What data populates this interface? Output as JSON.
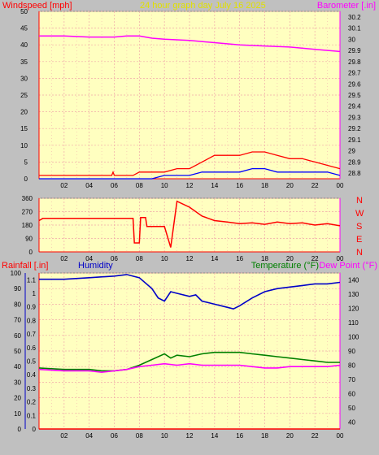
{
  "title": "24 hour graph day   July 16 2025",
  "colors": {
    "background": "#c0c0c0",
    "plot_bg": "#ffffc0",
    "grid": "#f0a8a8",
    "axis": "#ff0000",
    "wind": "#ff0000",
    "gust_blue": "#0000ff",
    "gust_green": "#008000",
    "barometer": "#ff00ff",
    "humidity": "#0000c8",
    "temperature": "#008000",
    "dew_point": "#ff00ff",
    "title_color": "#e0e000"
  },
  "chart_data": [
    {
      "type": "line",
      "name": "wind-barometer",
      "left_axis_label": "Windspeed [mph]",
      "right_axis_label": "Barometer [.in]",
      "x_ticks": [
        "02",
        "04",
        "06",
        "08",
        "10",
        "12",
        "14",
        "16",
        "18",
        "20",
        "22",
        "00"
      ],
      "y_left_ticks": [
        "0",
        "5",
        "10",
        "15",
        "20",
        "25",
        "30",
        "35",
        "40",
        "45",
        "50"
      ],
      "y_left_range": [
        0,
        50
      ],
      "y_right_ticks": [
        "28.8",
        "28.9",
        "29",
        "29.1",
        "29.2",
        "29.3",
        "29.4",
        "29.5",
        "29.6",
        "29.7",
        "29.8",
        "29.9",
        "30",
        "30.1",
        "30.2"
      ],
      "y_right_range": [
        28.75,
        30.25
      ],
      "series": [
        {
          "key": "barometer",
          "axis": "right",
          "x": [
            0,
            2,
            4,
            6,
            7,
            8,
            9,
            10,
            12,
            14,
            16,
            18,
            20,
            22,
            24
          ],
          "values": [
            30.03,
            30.03,
            30.02,
            30.02,
            30.03,
            30.03,
            30.01,
            30.0,
            29.99,
            29.97,
            29.95,
            29.94,
            29.93,
            29.91,
            29.89
          ]
        },
        {
          "key": "wind",
          "axis": "left",
          "x": [
            0,
            5.8,
            5.9,
            6.0,
            7.5,
            8,
            9,
            10,
            11,
            12,
            13,
            14,
            15,
            16,
            17,
            18,
            19,
            20,
            21,
            22,
            23,
            24
          ],
          "values": [
            1,
            1,
            2,
            1,
            1,
            2,
            2,
            2,
            3,
            3,
            5,
            7,
            7,
            7,
            8,
            8,
            7,
            6,
            6,
            5,
            4,
            3
          ]
        },
        {
          "key": "gust_blue",
          "axis": "left",
          "x": [
            0,
            9,
            10,
            11,
            12,
            13,
            14,
            15,
            16,
            17,
            18,
            19,
            20,
            21,
            22,
            23,
            24
          ],
          "values": [
            0,
            0,
            1,
            1,
            1,
            2,
            2,
            2,
            2,
            3,
            3,
            2,
            2,
            2,
            2,
            2,
            1
          ]
        }
      ]
    },
    {
      "type": "line",
      "name": "wind-direction",
      "right_labels": [
        "N",
        "W",
        "S",
        "E",
        "N"
      ],
      "x_ticks": [
        "02",
        "04",
        "06",
        "08",
        "10",
        "12",
        "14",
        "16",
        "18",
        "20",
        "22",
        "00"
      ],
      "y_ticks": [
        "0",
        "90",
        "180",
        "270",
        "360"
      ],
      "y_range": [
        0,
        360
      ],
      "series": [
        {
          "key": "direction",
          "x": [
            0,
            0.3,
            7.5,
            7.6,
            8.0,
            8.1,
            8.5,
            8.6,
            10.0,
            10.5,
            11,
            12,
            13,
            14,
            15,
            16,
            17,
            18,
            19,
            20,
            21,
            22,
            23,
            24
          ],
          "values": [
            210,
            225,
            225,
            60,
            60,
            230,
            230,
            170,
            170,
            30,
            340,
            300,
            240,
            210,
            200,
            190,
            195,
            185,
            200,
            190,
            195,
            180,
            190,
            175
          ]
        }
      ]
    },
    {
      "type": "line",
      "name": "temp-humidity-rain",
      "rain_label": "Rainfall [.in]",
      "humidity_label": "Humidity",
      "temperature_label": "Temperature (°F)",
      "dew_point_label": "Dew Point (°F)",
      "x_ticks": [
        "02",
        "04",
        "06",
        "08",
        "10",
        "12",
        "14",
        "16",
        "18",
        "20",
        "22",
        "00"
      ],
      "y_humidity_ticks": [
        "0",
        "10",
        "20",
        "30",
        "40",
        "50",
        "60",
        "70",
        "80",
        "90",
        "100"
      ],
      "y_humidity_range": [
        0,
        100
      ],
      "y_rain_ticks": [
        "0",
        "0.1",
        "0.2",
        "0.3",
        "0.4",
        "0.5",
        "0.6",
        "0.7",
        "0.8",
        "0.9",
        "1",
        "1.1"
      ],
      "y_rain_range": [
        0,
        1.15
      ],
      "y_temp_ticks": [
        "40",
        "50",
        "60",
        "70",
        "80",
        "90",
        "100",
        "110",
        "120",
        "130",
        "140"
      ],
      "y_temp_range": [
        35,
        145
      ],
      "series": [
        {
          "key": "humidity",
          "axis": "humidity",
          "x": [
            0,
            2,
            4,
            6,
            7,
            8,
            9,
            9.5,
            10,
            10.5,
            11,
            12,
            12.5,
            13,
            14,
            15,
            15.5,
            16,
            17,
            18,
            19,
            20,
            21,
            22,
            23,
            24
          ],
          "values": [
            96,
            96,
            97,
            98,
            99,
            97,
            90,
            84,
            82,
            88,
            87,
            85,
            86,
            82,
            80,
            78,
            77,
            79,
            84,
            88,
            90,
            91,
            92,
            93,
            93,
            94
          ]
        },
        {
          "key": "temperature",
          "axis": "temp",
          "x": [
            0,
            2,
            4,
            5,
            6,
            7,
            8,
            9,
            10,
            10.5,
            11,
            12,
            13,
            14,
            15,
            16,
            17,
            18,
            19,
            20,
            21,
            22,
            23,
            24
          ],
          "values": [
            78,
            77,
            77,
            76,
            76,
            77,
            80,
            84,
            88,
            85,
            87,
            86,
            88,
            89,
            89,
            89,
            88,
            87,
            86,
            85,
            84,
            83,
            82,
            82
          ]
        },
        {
          "key": "dew_point",
          "axis": "temp",
          "x": [
            0,
            2,
            4,
            5,
            6,
            7,
            8,
            9,
            10,
            11,
            12,
            13,
            14,
            15,
            16,
            17,
            18,
            19,
            20,
            21,
            22,
            23,
            24
          ],
          "values": [
            77,
            76,
            76,
            75,
            76,
            77,
            79,
            80,
            81,
            80,
            81,
            80,
            80,
            80,
            80,
            79,
            78,
            78,
            79,
            79,
            79,
            79,
            80
          ]
        },
        {
          "key": "rain",
          "axis": "rain",
          "x": [
            0,
            24
          ],
          "values": [
            0,
            0
          ]
        }
      ]
    }
  ]
}
